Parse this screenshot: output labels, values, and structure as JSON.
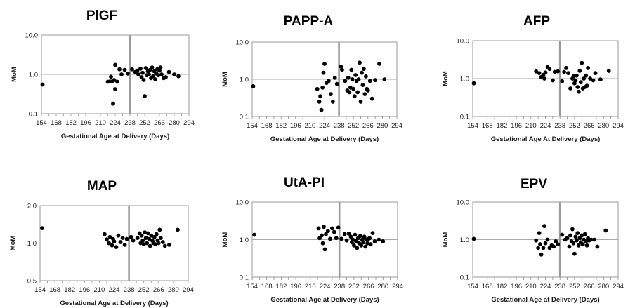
{
  "chart_data": [
    {
      "type": "scatter",
      "title": "PlGF",
      "xlabel": "Gestational Age at Delivery (Days)",
      "ylabel": "MoM",
      "y_scale": "log",
      "ylim": [
        0.1,
        10
      ],
      "y_ticks": [
        "0.1",
        "1.0",
        "10.0"
      ],
      "xlim": [
        154,
        294
      ],
      "x_ticks": [
        "154",
        "168",
        "182",
        "196",
        "210",
        "224",
        "238",
        "252",
        "266",
        "280",
        "294"
      ],
      "reference_line_x": 238,
      "reference_line_y": 1.0,
      "points": [
        [
          155,
          0.55
        ],
        [
          217,
          0.65
        ],
        [
          219,
          0.66
        ],
        [
          220,
          0.87
        ],
        [
          221,
          0.66
        ],
        [
          222,
          0.18
        ],
        [
          223,
          0.72
        ],
        [
          224,
          0.42
        ],
        [
          224,
          1.75
        ],
        [
          226,
          0.65
        ],
        [
          228,
          1.35
        ],
        [
          230,
          1.0
        ],
        [
          233,
          1.3
        ],
        [
          236,
          1.05
        ],
        [
          240,
          1.35
        ],
        [
          243,
          1.15
        ],
        [
          245,
          1.25
        ],
        [
          246,
          1.0
        ],
        [
          248,
          1.4
        ],
        [
          249,
          0.85
        ],
        [
          250,
          1.1
        ],
        [
          251,
          0.72
        ],
        [
          252,
          0.28
        ],
        [
          253,
          1.45
        ],
        [
          254,
          0.95
        ],
        [
          255,
          1.2
        ],
        [
          256,
          1.0
        ],
        [
          257,
          1.3
        ],
        [
          258,
          0.8
        ],
        [
          259,
          1.5
        ],
        [
          260,
          0.9
        ],
        [
          261,
          1.2
        ],
        [
          262,
          0.75
        ],
        [
          263,
          1.05
        ],
        [
          264,
          1.35
        ],
        [
          265,
          0.95
        ],
        [
          266,
          1.25
        ],
        [
          267,
          1.5
        ],
        [
          268,
          1.0
        ],
        [
          270,
          0.8
        ],
        [
          272,
          0.85
        ],
        [
          275,
          1.15
        ],
        [
          280,
          1.0
        ],
        [
          284,
          0.9
        ]
      ]
    },
    {
      "type": "scatter",
      "title": "PAPP-A",
      "xlabel": "Gestational Age at Delivery (Days)",
      "ylabel": "MoM",
      "y_scale": "log",
      "ylim": [
        0.1,
        10
      ],
      "y_ticks": [
        "0.1",
        "1.0",
        "10.0"
      ],
      "xlim": [
        154,
        294
      ],
      "x_ticks": [
        "154",
        "168",
        "182",
        "196",
        "210",
        "224",
        "238",
        "252",
        "266",
        "280",
        "294"
      ],
      "reference_line_x": 238,
      "reference_line_y": 1.0,
      "points": [
        [
          155,
          0.65
        ],
        [
          217,
          0.55
        ],
        [
          219,
          0.25
        ],
        [
          220,
          0.35
        ],
        [
          221,
          0.15
        ],
        [
          222,
          0.6
        ],
        [
          223,
          1.5
        ],
        [
          224,
          2.6
        ],
        [
          226,
          0.8
        ],
        [
          228,
          0.9
        ],
        [
          230,
          0.4
        ],
        [
          232,
          0.25
        ],
        [
          234,
          1.1
        ],
        [
          236,
          0.75
        ],
        [
          240,
          2.2
        ],
        [
          241,
          1.8
        ],
        [
          244,
          0.9
        ],
        [
          246,
          0.5
        ],
        [
          247,
          1.1
        ],
        [
          248,
          0.45
        ],
        [
          249,
          0.6
        ],
        [
          250,
          1.8
        ],
        [
          251,
          1.0
        ],
        [
          252,
          0.55
        ],
        [
          253,
          0.35
        ],
        [
          254,
          1.3
        ],
        [
          255,
          0.9
        ],
        [
          256,
          0.45
        ],
        [
          257,
          1.0
        ],
        [
          258,
          2.8
        ],
        [
          259,
          0.25
        ],
        [
          260,
          1.5
        ],
        [
          261,
          0.7
        ],
        [
          262,
          1.9
        ],
        [
          263,
          0.4
        ],
        [
          264,
          1.2
        ],
        [
          265,
          0.55
        ],
        [
          266,
          0.5
        ],
        [
          268,
          0.9
        ],
        [
          270,
          0.3
        ],
        [
          273,
          0.95
        ],
        [
          277,
          2.6
        ],
        [
          282,
          1.0
        ]
      ]
    },
    {
      "type": "scatter",
      "title": "AFP",
      "xlabel": "Gestational Age At Delivery (Days)",
      "ylabel": "MoM",
      "y_scale": "log",
      "ylim": [
        0.1,
        10
      ],
      "y_ticks": [
        "0.1",
        "1.0",
        "10.0"
      ],
      "xlim": [
        154,
        294
      ],
      "x_ticks": [
        "154",
        "168",
        "182",
        "196",
        "210",
        "224",
        "238",
        "252",
        "266",
        "280",
        "294"
      ],
      "reference_line_x": 238,
      "reference_line_y": 1.0,
      "points": [
        [
          155,
          0.75
        ],
        [
          215,
          1.55
        ],
        [
          218,
          1.4
        ],
        [
          220,
          1.1
        ],
        [
          222,
          1.25
        ],
        [
          223,
          1.0
        ],
        [
          224,
          1.45
        ],
        [
          226,
          2.0
        ],
        [
          228,
          1.8
        ],
        [
          231,
          0.9
        ],
        [
          233,
          1.5
        ],
        [
          236,
          1.55
        ],
        [
          240,
          0.85
        ],
        [
          242,
          1.5
        ],
        [
          244,
          1.9
        ],
        [
          246,
          1.4
        ],
        [
          248,
          0.55
        ],
        [
          250,
          1.0
        ],
        [
          251,
          1.15
        ],
        [
          252,
          0.75
        ],
        [
          253,
          0.9
        ],
        [
          254,
          1.2
        ],
        [
          255,
          0.6
        ],
        [
          256,
          0.45
        ],
        [
          257,
          1.6
        ],
        [
          258,
          0.8
        ],
        [
          259,
          2.6
        ],
        [
          260,
          0.55
        ],
        [
          261,
          1.0
        ],
        [
          262,
          0.6
        ],
        [
          263,
          1.2
        ],
        [
          264,
          0.65
        ],
        [
          265,
          1.9
        ],
        [
          267,
          1.0
        ],
        [
          270,
          0.9
        ],
        [
          272,
          1.4
        ],
        [
          277,
          0.95
        ],
        [
          285,
          1.6
        ]
      ]
    },
    {
      "type": "scatter",
      "title": "MAP",
      "xlabel": "Gestational Age at Delivery (Days)",
      "ylabel": "MoM",
      "y_scale": "log",
      "ylim": [
        0.5,
        2.0
      ],
      "y_ticks": [
        "0.5",
        "1.0",
        "2.0"
      ],
      "xlim": [
        154,
        294
      ],
      "x_ticks": [
        "154",
        "168",
        "182",
        "196",
        "210",
        "224",
        "238",
        "252",
        "266",
        "280",
        "294"
      ],
      "reference_line_x": 238,
      "reference_line_y": 1.0,
      "points": [
        [
          156,
          1.32
        ],
        [
          215,
          1.18
        ],
        [
          217,
          1.07
        ],
        [
          219,
          1.0
        ],
        [
          220,
          1.12
        ],
        [
          222,
          0.96
        ],
        [
          223,
          1.08
        ],
        [
          224,
          1.03
        ],
        [
          226,
          0.93
        ],
        [
          228,
          1.15
        ],
        [
          230,
          1.02
        ],
        [
          232,
          1.1
        ],
        [
          234,
          0.97
        ],
        [
          236,
          1.08
        ],
        [
          240,
          1.12
        ],
        [
          242,
          1.05
        ],
        [
          246,
          1.1
        ],
        [
          248,
          1.2
        ],
        [
          249,
          1.0
        ],
        [
          250,
          1.15
        ],
        [
          251,
          1.05
        ],
        [
          252,
          0.98
        ],
        [
          253,
          1.22
        ],
        [
          254,
          1.1
        ],
        [
          255,
          1.0
        ],
        [
          256,
          1.2
        ],
        [
          257,
          1.08
        ],
        [
          258,
          0.95
        ],
        [
          259,
          1.15
        ],
        [
          260,
          1.05
        ],
        [
          261,
          1.0
        ],
        [
          262,
          1.12
        ],
        [
          263,
          0.98
        ],
        [
          264,
          1.18
        ],
        [
          265,
          1.05
        ],
        [
          266,
          1.0
        ],
        [
          267,
          1.28
        ],
        [
          268,
          1.1
        ],
        [
          270,
          1.02
        ],
        [
          272,
          0.95
        ],
        [
          276,
          0.97
        ],
        [
          284,
          1.28
        ]
      ]
    },
    {
      "type": "scatter",
      "title": "UtA-PI",
      "xlabel": "Gestational Age at Delivery (Days)",
      "ylabel": "MoM",
      "y_scale": "log",
      "ylim": [
        0.1,
        10
      ],
      "y_ticks": [
        "0.1",
        "1.0",
        "10.0"
      ],
      "xlim": [
        154,
        294
      ],
      "x_ticks": [
        "154",
        "168",
        "182",
        "196",
        "210",
        "224",
        "238",
        "252",
        "266",
        "280",
        "294"
      ],
      "reference_line_x": 238,
      "reference_line_y": 1.0,
      "points": [
        [
          156,
          1.35
        ],
        [
          218,
          2.0
        ],
        [
          219,
          1.1
        ],
        [
          221,
          1.3
        ],
        [
          222,
          0.8
        ],
        [
          223,
          2.2
        ],
        [
          224,
          0.55
        ],
        [
          225,
          1.4
        ],
        [
          227,
          1.7
        ],
        [
          229,
          1.05
        ],
        [
          231,
          2.0
        ],
        [
          233,
          1.6
        ],
        [
          235,
          1.1
        ],
        [
          237,
          2.1
        ],
        [
          240,
          1.05
        ],
        [
          243,
          1.4
        ],
        [
          245,
          0.95
        ],
        [
          247,
          1.45
        ],
        [
          249,
          1.2
        ],
        [
          250,
          0.85
        ],
        [
          251,
          1.0
        ],
        [
          252,
          0.7
        ],
        [
          253,
          1.35
        ],
        [
          254,
          0.9
        ],
        [
          255,
          0.6
        ],
        [
          256,
          1.1
        ],
        [
          257,
          0.8
        ],
        [
          258,
          1.25
        ],
        [
          259,
          0.7
        ],
        [
          260,
          1.0
        ],
        [
          261,
          0.85
        ],
        [
          262,
          1.2
        ],
        [
          263,
          0.65
        ],
        [
          264,
          1.0
        ],
        [
          265,
          0.8
        ],
        [
          266,
          1.05
        ],
        [
          267,
          1.1
        ],
        [
          268,
          0.75
        ],
        [
          270,
          1.5
        ],
        [
          272,
          0.9
        ],
        [
          276,
          1.0
        ],
        [
          280,
          0.9
        ]
      ]
    },
    {
      "type": "scatter",
      "title": "EPV",
      "xlabel": "Gestational Age at Delivery (Days)",
      "ylabel": "MoM",
      "y_scale": "log",
      "ylim": [
        0.1,
        10
      ],
      "y_ticks": [
        "0.1",
        "1.0",
        "10.0"
      ],
      "xlim": [
        154,
        294
      ],
      "x_ticks": [
        "154",
        "168",
        "182",
        "196",
        "210",
        "224",
        "238",
        "252",
        "266",
        "280",
        "294"
      ],
      "reference_line_x": 238,
      "reference_line_y": 1.0,
      "points": [
        [
          155,
          1.05
        ],
        [
          215,
          0.95
        ],
        [
          217,
          0.6
        ],
        [
          218,
          1.5
        ],
        [
          219,
          0.75
        ],
        [
          220,
          0.4
        ],
        [
          222,
          0.6
        ],
        [
          223,
          2.3
        ],
        [
          224,
          0.8
        ],
        [
          226,
          1.0
        ],
        [
          228,
          0.6
        ],
        [
          230,
          0.7
        ],
        [
          232,
          0.65
        ],
        [
          234,
          0.9
        ],
        [
          236,
          0.75
        ],
        [
          240,
          1.35
        ],
        [
          243,
          1.0
        ],
        [
          245,
          1.1
        ],
        [
          247,
          0.65
        ],
        [
          248,
          1.3
        ],
        [
          249,
          0.9
        ],
        [
          250,
          1.9
        ],
        [
          251,
          0.8
        ],
        [
          252,
          0.42
        ],
        [
          253,
          1.2
        ],
        [
          254,
          0.95
        ],
        [
          255,
          1.5
        ],
        [
          256,
          0.7
        ],
        [
          257,
          1.1
        ],
        [
          258,
          0.85
        ],
        [
          259,
          1.3
        ],
        [
          260,
          0.75
        ],
        [
          261,
          1.0
        ],
        [
          262,
          1.4
        ],
        [
          263,
          0.9
        ],
        [
          264,
          0.7
        ],
        [
          265,
          1.1
        ],
        [
          266,
          0.95
        ],
        [
          268,
          1.0
        ],
        [
          271,
          1.0
        ],
        [
          274,
          0.65
        ],
        [
          282,
          1.75
        ]
      ]
    }
  ]
}
